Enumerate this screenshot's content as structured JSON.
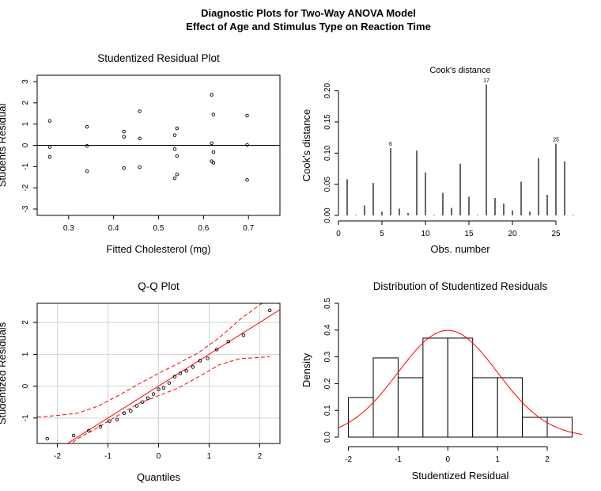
{
  "figure_title": [
    "Diagnostic Plots for Two-Way ANOVA Model",
    "Effect of Age and Stimulus Type on Reaction Time"
  ],
  "chart_data": [
    {
      "type": "scatter",
      "title": "Studentized Residual Plot",
      "xlabel": "Fitted Cholesterol (mg)",
      "ylabel": "Students Residual",
      "xlim": [
        0.23,
        0.77
      ],
      "ylim": [
        -3.3,
        3.3
      ],
      "xticks": [
        0.3,
        0.4,
        0.5,
        0.6,
        0.7
      ],
      "yticks": [
        -3,
        -2,
        -1,
        0,
        1,
        2,
        3
      ],
      "hline": 0,
      "points": [
        {
          "x": 0.258,
          "y": 1.15
        },
        {
          "x": 0.258,
          "y": -0.08
        },
        {
          "x": 0.258,
          "y": -0.55
        },
        {
          "x": 0.341,
          "y": 0.87
        },
        {
          "x": 0.341,
          "y": -0.03
        },
        {
          "x": 0.341,
          "y": -1.22
        },
        {
          "x": 0.423,
          "y": 0.65
        },
        {
          "x": 0.423,
          "y": 0.4
        },
        {
          "x": 0.423,
          "y": -1.07
        },
        {
          "x": 0.458,
          "y": 1.6
        },
        {
          "x": 0.458,
          "y": 0.32
        },
        {
          "x": 0.458,
          "y": -1.03
        },
        {
          "x": 0.536,
          "y": 0.48
        },
        {
          "x": 0.536,
          "y": -0.18
        },
        {
          "x": 0.536,
          "y": -1.55
        },
        {
          "x": 0.541,
          "y": 0.8
        },
        {
          "x": 0.541,
          "y": -0.5
        },
        {
          "x": 0.541,
          "y": -1.37
        },
        {
          "x": 0.618,
          "y": 2.38
        },
        {
          "x": 0.618,
          "y": 0.1
        },
        {
          "x": 0.618,
          "y": -0.75
        },
        {
          "x": 0.622,
          "y": 1.45
        },
        {
          "x": 0.622,
          "y": -0.32
        },
        {
          "x": 0.622,
          "y": -0.82
        },
        {
          "x": 0.697,
          "y": 1.4
        },
        {
          "x": 0.697,
          "y": 0.02
        },
        {
          "x": 0.697,
          "y": -1.63
        }
      ]
    },
    {
      "type": "bar",
      "title": "Cook's distance",
      "xlabel": "Obs. number",
      "ylabel": "Cook's distance",
      "xlim": [
        0,
        28
      ],
      "ylim": [
        0,
        0.225
      ],
      "xticks": [
        0,
        5,
        10,
        15,
        20,
        25
      ],
      "yticks": [
        "0.00",
        "0.05",
        "0.10",
        "0.15",
        "0.20"
      ],
      "obs": [
        1,
        2,
        3,
        4,
        5,
        6,
        7,
        8,
        9,
        10,
        11,
        12,
        13,
        14,
        15,
        16,
        17,
        18,
        19,
        20,
        21,
        22,
        23,
        24,
        25,
        26,
        27
      ],
      "values": [
        0.058,
        0.001,
        0.016,
        0.052,
        0.006,
        0.108,
        0.011,
        0.004,
        0.104,
        0.069,
        0.001,
        0.036,
        0.012,
        0.083,
        0.03,
        0.001,
        0.21,
        0.028,
        0.019,
        0.008,
        0.054,
        0.006,
        0.092,
        0.033,
        0.115,
        0.087,
        0.001
      ],
      "labeled": [
        {
          "obs": 6,
          "label": "6"
        },
        {
          "obs": 17,
          "label": "17"
        },
        {
          "obs": 25,
          "label": "25"
        }
      ]
    },
    {
      "type": "scatter",
      "title": "Q-Q Plot",
      "xlabel": "Quantiles",
      "ylabel": "Studentized Residuals",
      "xlim": [
        -2.4,
        2.4
      ],
      "ylim": [
        -1.8,
        2.6
      ],
      "xticks": [
        -2,
        -1,
        0,
        1,
        2
      ],
      "yticks": [
        -1,
        0,
        1,
        2
      ],
      "grid": true,
      "reference_line": {
        "slope": 1.0,
        "intercept": 0.0,
        "color": "#ff0000"
      },
      "envelope_color": "#ff0000",
      "envelope_upper": [
        [
          -2.4,
          -0.97
        ],
        [
          -2.0,
          -0.92
        ],
        [
          -1.6,
          -0.85
        ],
        [
          -1.2,
          -0.63
        ],
        [
          -0.8,
          -0.3
        ],
        [
          -0.4,
          0.06
        ],
        [
          0.0,
          0.4
        ],
        [
          0.4,
          0.72
        ],
        [
          0.8,
          1.06
        ],
        [
          1.2,
          1.52
        ],
        [
          1.6,
          2.08
        ],
        [
          2.0,
          2.55
        ],
        [
          2.2,
          2.75
        ]
      ],
      "envelope_lower": [
        [
          -1.9,
          -2.0
        ],
        [
          -1.6,
          -1.65
        ],
        [
          -1.2,
          -1.3
        ],
        [
          -0.8,
          -0.92
        ],
        [
          -0.4,
          -0.55
        ],
        [
          0.0,
          -0.3
        ],
        [
          0.4,
          -0.05
        ],
        [
          0.8,
          0.3
        ],
        [
          1.2,
          0.67
        ],
        [
          1.6,
          0.86
        ],
        [
          2.0,
          0.9
        ],
        [
          2.2,
          0.93
        ]
      ],
      "points": [
        {
          "x": -2.2,
          "y": -1.65
        },
        {
          "x": -1.68,
          "y": -1.55
        },
        {
          "x": -1.38,
          "y": -1.4
        },
        {
          "x": -1.15,
          "y": -1.27
        },
        {
          "x": -0.97,
          "y": -1.1
        },
        {
          "x": -0.82,
          "y": -1.05
        },
        {
          "x": -0.68,
          "y": -0.85
        },
        {
          "x": -0.55,
          "y": -0.78
        },
        {
          "x": -0.43,
          "y": -0.62
        },
        {
          "x": -0.32,
          "y": -0.5
        },
        {
          "x": -0.21,
          "y": -0.38
        },
        {
          "x": -0.1,
          "y": -0.25
        },
        {
          "x": 0.0,
          "y": -0.1
        },
        {
          "x": 0.1,
          "y": -0.05
        },
        {
          "x": 0.21,
          "y": 0.1
        },
        {
          "x": 0.32,
          "y": 0.3
        },
        {
          "x": 0.43,
          "y": 0.4
        },
        {
          "x": 0.55,
          "y": 0.48
        },
        {
          "x": 0.68,
          "y": 0.6
        },
        {
          "x": 0.82,
          "y": 0.8
        },
        {
          "x": 0.97,
          "y": 0.87
        },
        {
          "x": 1.15,
          "y": 1.15
        },
        {
          "x": 1.38,
          "y": 1.4
        },
        {
          "x": 1.68,
          "y": 1.6
        },
        {
          "x": 2.2,
          "y": 2.38
        }
      ]
    },
    {
      "type": "histogram",
      "title": "Distribution of Studentized Residuals",
      "xlabel": "Studentized Residual",
      "ylabel": "Density",
      "xlim": [
        -2.2,
        2.7
      ],
      "ylim": [
        0,
        0.5
      ],
      "xticks": [
        -2,
        -1,
        0,
        1,
        2
      ],
      "yticks": [
        "0.0",
        "0.1",
        "0.2",
        "0.3",
        "0.4",
        "0.5"
      ],
      "bins": [
        [
          -2.0,
          -1.5
        ],
        [
          -1.5,
          -1.0
        ],
        [
          -1.0,
          -0.5
        ],
        [
          -0.5,
          0.0
        ],
        [
          0.0,
          0.5
        ],
        [
          0.5,
          1.0
        ],
        [
          1.0,
          1.5
        ],
        [
          1.5,
          2.0
        ],
        [
          2.0,
          2.5
        ]
      ],
      "densities": [
        0.148,
        0.296,
        0.222,
        0.37,
        0.37,
        0.222,
        0.222,
        0.074,
        0.074
      ],
      "curve": {
        "type": "normal_density",
        "mean": 0,
        "sd": 1,
        "color": "#ff0000"
      }
    }
  ]
}
